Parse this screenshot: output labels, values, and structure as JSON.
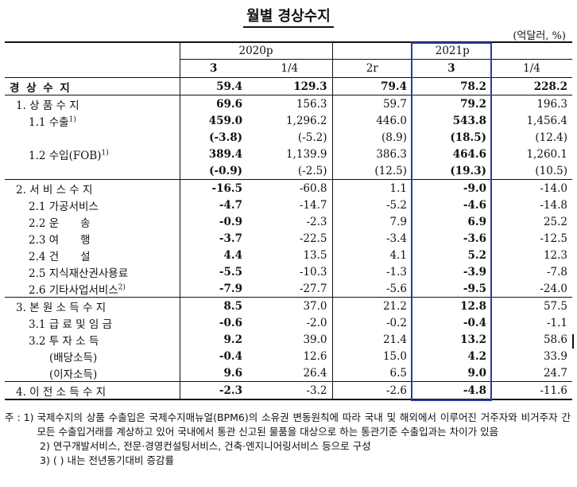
{
  "title": "월별 경상수지",
  "unit": "(억달러, %)",
  "header": {
    "year_groups": [
      "2020p",
      "2021p"
    ],
    "columns": [
      "3",
      "1/4",
      "2r",
      "3",
      "1/4"
    ]
  },
  "rows": [
    {
      "label": "경 상 수 지",
      "level": 0,
      "values": [
        "59.4",
        "129.3",
        "79.4",
        "78.2",
        "228.2"
      ]
    },
    {
      "label": "1. 상 품 수 지",
      "level": 1,
      "values": [
        "69.6",
        "156.3",
        "59.7",
        "79.2",
        "196.3"
      ]
    },
    {
      "label": "1.1 수출",
      "sup": "1)",
      "level": 2,
      "values": [
        "459.0",
        "1,296.2",
        "446.0",
        "543.8",
        "1,456.4"
      ]
    },
    {
      "label": "",
      "level": 2,
      "values": [
        "(-3.8)",
        "(-5.2)",
        "(8.9)",
        "(18.5)",
        "(12.4)"
      ]
    },
    {
      "label": "1.2 수입(FOB)",
      "sup": "1)",
      "level": 2,
      "values": [
        "389.4",
        "1,139.9",
        "386.3",
        "464.6",
        "1,260.1"
      ]
    },
    {
      "label": "",
      "level": 2,
      "values": [
        "(-0.9)",
        "(-2.5)",
        "(12.5)",
        "(19.3)",
        "(10.5)"
      ]
    },
    {
      "label": "2. 서 비 스 수 지",
      "level": 1,
      "values": [
        "-16.5",
        "-60.8",
        "1.1",
        "-9.0",
        "-14.0"
      ]
    },
    {
      "label": "2.1 가공서비스",
      "level": 2,
      "values": [
        "-4.7",
        "-14.7",
        "-5.2",
        "-4.6",
        "-14.8"
      ]
    },
    {
      "label": "2.2 운　　송",
      "level": 2,
      "values": [
        "-0.9",
        "-2.3",
        "7.9",
        "6.9",
        "25.2"
      ]
    },
    {
      "label": "2.3 여　　행",
      "level": 2,
      "values": [
        "-3.7",
        "-22.5",
        "-3.4",
        "-3.6",
        "-12.5"
      ]
    },
    {
      "label": "2.4 건　　설",
      "level": 2,
      "values": [
        "4.4",
        "13.5",
        "4.1",
        "5.2",
        "12.3"
      ]
    },
    {
      "label": "2.5 지식재산권사용료",
      "level": 2,
      "values": [
        "-5.5",
        "-10.3",
        "-1.3",
        "-3.9",
        "-7.8"
      ]
    },
    {
      "label": "2.6 기타사업서비스",
      "sup": "2)",
      "level": 2,
      "values": [
        "-7.9",
        "-27.7",
        "-5.6",
        "-9.5",
        "-24.0"
      ]
    },
    {
      "label": "3. 본 원 소 득 수 지",
      "level": 1,
      "values": [
        "8.5",
        "37.0",
        "21.2",
        "12.8",
        "57.5"
      ]
    },
    {
      "label": "3.1 급 료 및 임 금",
      "level": 2,
      "values": [
        "-0.6",
        "-2.0",
        "-0.2",
        "-0.4",
        "-1.1"
      ]
    },
    {
      "label": "3.2 투 자 소 득",
      "level": 2,
      "values": [
        "9.2",
        "39.0",
        "21.4",
        "13.2",
        "58.6"
      ]
    },
    {
      "label": "(배당소득)",
      "level": 3,
      "values": [
        "-0.4",
        "12.6",
        "15.0",
        "4.2",
        "33.9"
      ]
    },
    {
      "label": "(이자소득)",
      "level": 3,
      "values": [
        "9.6",
        "26.4",
        "6.5",
        "9.0",
        "24.7"
      ]
    },
    {
      "label": "4. 이 전 소 득 수 지",
      "level": 1,
      "values": [
        "-2.3",
        "-3.2",
        "-2.6",
        "-4.8",
        "-11.6"
      ]
    }
  ],
  "notes": [
    {
      "key": "주 : 1) ",
      "text": "국제수지의 상품 수출입은 국제수지매뉴얼(BPM6)의 소유권 변동원칙에 따라 국내 및 해외에서 이루어진 거주자와 비거주자 간 모든 수출입거래를 계상하고 있어 국내에서 통관 신고된 물품을 대상으로 하는 통관기준 수출입과는 차이가 있음"
    },
    {
      "key": "2) ",
      "text": "연구개발서비스, 전문·경영컨설팅서비스, 건축·엔지니어링서비스 등으로 구성"
    },
    {
      "key": "3) ",
      "text": "(   ) 내는 전년동기대비 증감률"
    }
  ],
  "colors": {
    "highlight_border": "#2a3aa8",
    "text": "#111111"
  }
}
